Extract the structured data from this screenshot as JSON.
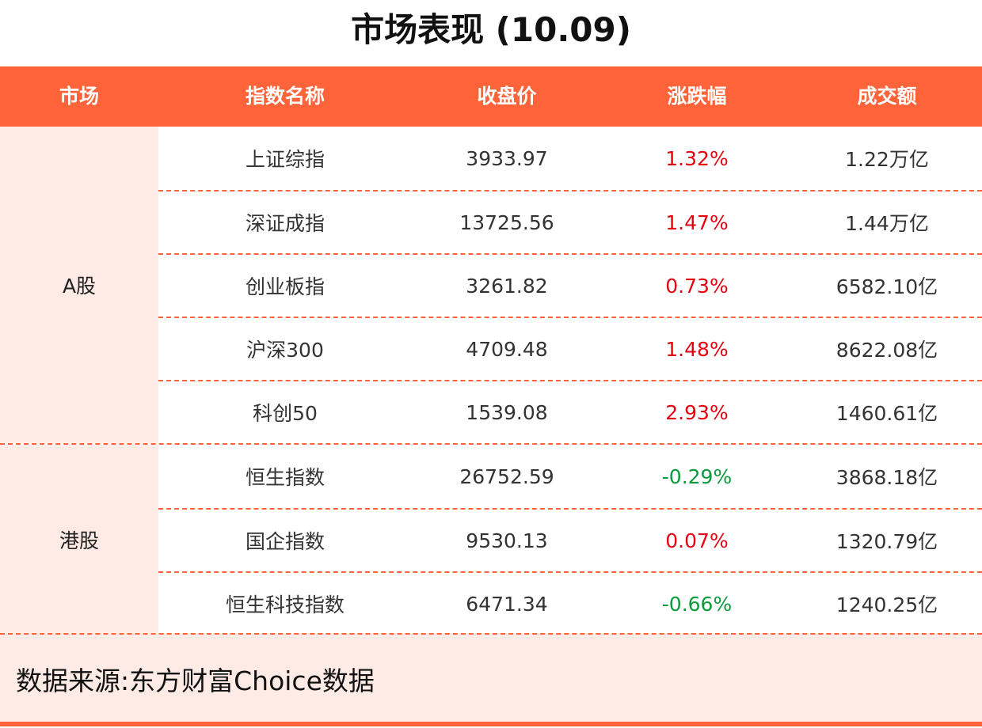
{
  "title": "市场表现 (10.09)",
  "headers": [
    "市场",
    "指数名称",
    "收盘价",
    "涨跌幅",
    "成交额"
  ],
  "groups": [
    {
      "market": "A股",
      "rows": [
        {
          "name": "上证综指",
          "close": "3933.97",
          "change": "1.32%",
          "dir": "up",
          "turnover": "1.22万亿"
        },
        {
          "name": "深证成指",
          "close": "13725.56",
          "change": "1.47%",
          "dir": "up",
          "turnover": "1.44万亿"
        },
        {
          "name": "创业板指",
          "close": "3261.82",
          "change": "0.73%",
          "dir": "up",
          "turnover": "6582.10亿"
        },
        {
          "name": "沪深300",
          "close": "4709.48",
          "change": "1.48%",
          "dir": "up",
          "turnover": "8622.08亿"
        },
        {
          "name": "科创50",
          "close": "1539.08",
          "change": "2.93%",
          "dir": "up",
          "turnover": "1460.61亿"
        }
      ]
    },
    {
      "market": "港股",
      "rows": [
        {
          "name": "恒生指数",
          "close": "26752.59",
          "change": "-0.29%",
          "dir": "down",
          "turnover": "3868.18亿"
        },
        {
          "name": "国企指数",
          "close": "9530.13",
          "change": "0.07%",
          "dir": "up",
          "turnover": "1320.79亿"
        },
        {
          "name": "恒生科技指数",
          "close": "6471.34",
          "change": "-0.66%",
          "dir": "down",
          "turnover": "1240.25亿"
        }
      ]
    }
  ],
  "footer": "数据来源:东方财富Choice数据",
  "colors": {
    "accent": "#FF6339",
    "light": "#FFEBE5",
    "up": "#E60012",
    "down": "#0A9B3C"
  }
}
